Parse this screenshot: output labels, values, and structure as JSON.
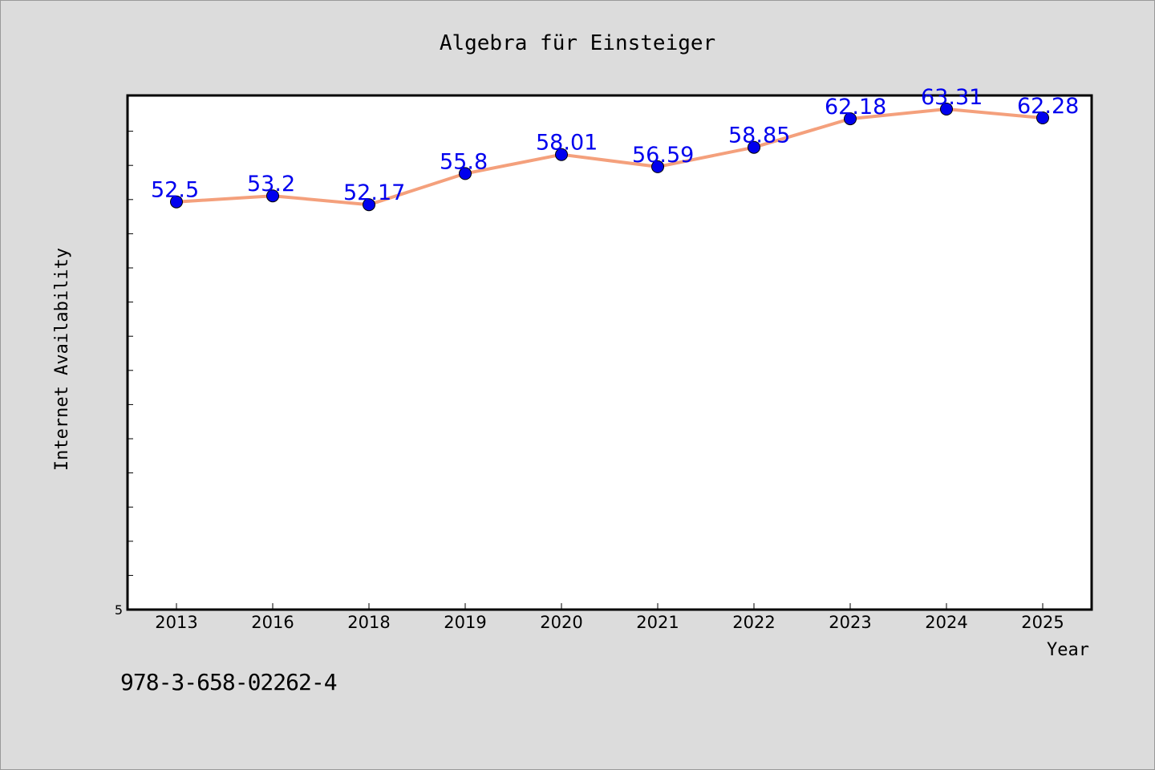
{
  "chart_data": {
    "type": "line",
    "title": "Algebra für Einsteiger",
    "xlabel": "Year",
    "ylabel": "Internet Availability",
    "categories": [
      "2013",
      "2016",
      "2018",
      "2019",
      "2020",
      "2021",
      "2022",
      "2023",
      "2024",
      "2025"
    ],
    "series": [
      {
        "values": [
          52.5,
          53.2,
          52.17,
          55.8,
          58.01,
          56.59,
          58.85,
          62.18,
          63.31,
          62.28
        ],
        "data_labels": [
          "52.5",
          "53.2",
          "52.17",
          "55.8",
          "58.01",
          "56.59",
          "58.85",
          "62.18",
          "63.31",
          "62.28"
        ],
        "line_color": "#f4a07c",
        "marker_color": "#0000ee"
      }
    ],
    "ylim": [
      5,
      64.9
    ],
    "y_tick_labels": [
      "5"
    ],
    "grid": false,
    "label_color": "#0000ee"
  },
  "footer": {
    "isbn": "978-3-658-02262-4"
  }
}
